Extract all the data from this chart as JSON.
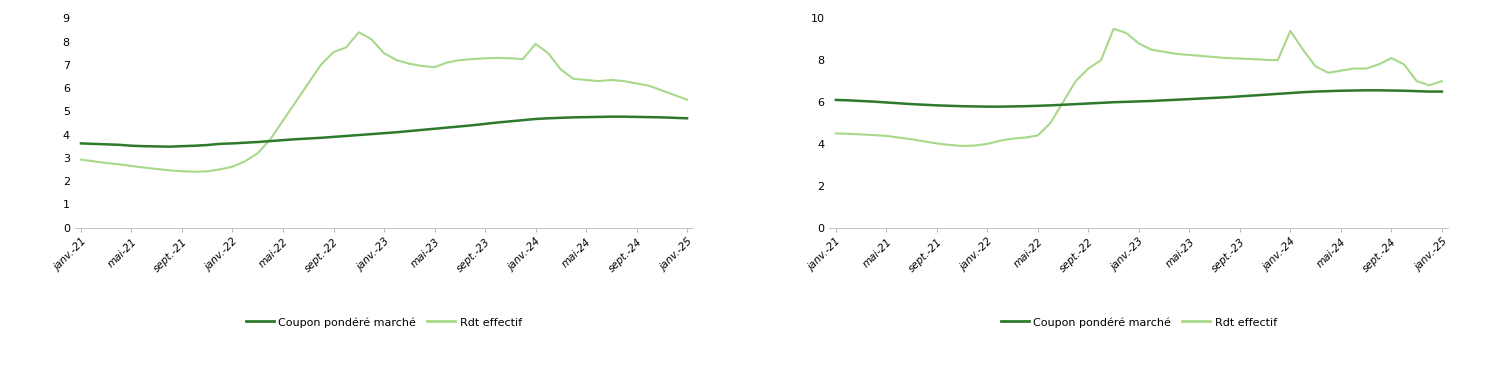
{
  "x_labels": [
    "janv.-21",
    "mai-21",
    "sept.-21",
    "janv.-22",
    "mai-22",
    "sept.-22",
    "janv.-23",
    "mai-23",
    "sept.-23",
    "janv.-24",
    "mai-24",
    "sept.-24",
    "janv.-25"
  ],
  "x_tick_positions": [
    0,
    4,
    8,
    12,
    16,
    20,
    24,
    28,
    32,
    36,
    40,
    44,
    48
  ],
  "chart1": {
    "coupon": [
      3.62,
      3.6,
      3.58,
      3.56,
      3.52,
      3.5,
      3.49,
      3.48,
      3.5,
      3.52,
      3.55,
      3.6,
      3.62,
      3.65,
      3.68,
      3.72,
      3.76,
      3.8,
      3.83,
      3.86,
      3.9,
      3.94,
      3.98,
      4.02,
      4.06,
      4.1,
      4.15,
      4.2,
      4.25,
      4.3,
      4.35,
      4.4,
      4.46,
      4.52,
      4.57,
      4.62,
      4.67,
      4.7,
      4.72,
      4.74,
      4.75,
      4.76,
      4.77,
      4.77,
      4.76,
      4.75,
      4.74,
      4.72,
      4.7
    ],
    "rdt": [
      2.92,
      2.85,
      2.78,
      2.72,
      2.65,
      2.58,
      2.52,
      2.46,
      2.42,
      2.4,
      2.42,
      2.5,
      2.62,
      2.85,
      3.2,
      3.8,
      4.6,
      5.4,
      6.2,
      7.0,
      7.55,
      7.75,
      8.4,
      8.1,
      7.5,
      7.2,
      7.05,
      6.95,
      6.9,
      7.1,
      7.2,
      7.25,
      7.28,
      7.3,
      7.28,
      7.25,
      7.9,
      7.5,
      6.8,
      6.4,
      6.35,
      6.3,
      6.35,
      6.3,
      6.2,
      6.1,
      5.9,
      5.7,
      5.5
    ]
  },
  "chart2": {
    "coupon": [
      6.1,
      6.08,
      6.05,
      6.02,
      5.98,
      5.94,
      5.9,
      5.87,
      5.84,
      5.82,
      5.8,
      5.79,
      5.78,
      5.78,
      5.79,
      5.8,
      5.82,
      5.84,
      5.87,
      5.9,
      5.93,
      5.96,
      5.99,
      6.01,
      6.03,
      6.05,
      6.08,
      6.11,
      6.14,
      6.17,
      6.2,
      6.23,
      6.27,
      6.31,
      6.35,
      6.39,
      6.43,
      6.47,
      6.5,
      6.52,
      6.54,
      6.55,
      6.56,
      6.56,
      6.55,
      6.54,
      6.52,
      6.5,
      6.5
    ],
    "rdt": [
      4.5,
      4.48,
      4.45,
      4.42,
      4.38,
      4.3,
      4.22,
      4.12,
      4.02,
      3.95,
      3.9,
      3.92,
      4.0,
      4.15,
      4.25,
      4.3,
      4.4,
      5.0,
      6.0,
      7.0,
      7.6,
      8.0,
      9.5,
      9.3,
      8.8,
      8.5,
      8.4,
      8.3,
      8.25,
      8.2,
      8.15,
      8.1,
      8.08,
      8.05,
      8.02,
      8.0,
      9.4,
      8.5,
      7.7,
      7.4,
      7.5,
      7.6,
      7.6,
      7.8,
      8.1,
      7.8,
      7.0,
      6.8,
      7.0
    ]
  },
  "color_coupon": "#2d7a2d",
  "color_rdt": "#a8d88a",
  "legend_coupon": "Coupon pondéré marché",
  "legend_rdt": "Rdt effectif",
  "ylim1": [
    0,
    9
  ],
  "ylim2": [
    0,
    10
  ],
  "yticks1": [
    0,
    1,
    2,
    3,
    4,
    5,
    6,
    7,
    8,
    9
  ],
  "yticks2": [
    0,
    2,
    4,
    6,
    8,
    10
  ]
}
